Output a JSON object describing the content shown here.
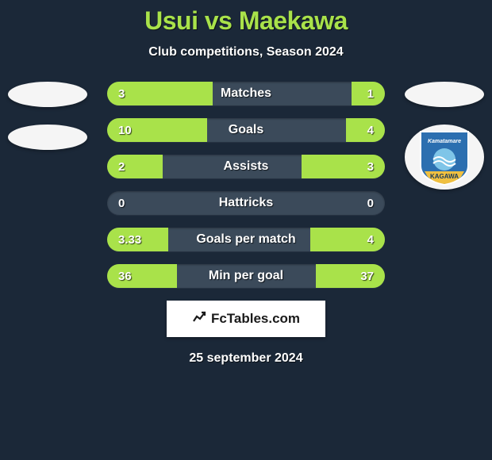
{
  "header": {
    "title": "Usui vs Maekawa",
    "subtitle": "Club competitions, Season 2024",
    "title_color": "#a9e24a"
  },
  "page": {
    "background_color": "#1b2838"
  },
  "badge": {
    "shield_label_top": "Kamatamare",
    "shield_label_bottom": "KAGAWA",
    "shield_blue": "#2c6fb0",
    "shield_yellow": "#f0c040",
    "shield_sky": "#7fc5e8"
  },
  "stats": {
    "track_base_color": "#3b4a5a",
    "left_bar_color": "#a9e24a",
    "right_bar_color": "#a9e24a",
    "null_color_left": "#a9e24a",
    "null_color_right": "#a9e24a",
    "rows": [
      {
        "label": "Matches",
        "left_val": "3",
        "right_val": "1",
        "left_pct": 38,
        "right_pct": 12
      },
      {
        "label": "Goals",
        "left_val": "10",
        "right_val": "4",
        "left_pct": 36,
        "right_pct": 14
      },
      {
        "label": "Assists",
        "left_val": "2",
        "right_val": "3",
        "left_pct": 20,
        "right_pct": 30
      },
      {
        "label": "Hattricks",
        "left_val": "0",
        "right_val": "0",
        "left_pct": 0,
        "right_pct": 0
      },
      {
        "label": "Goals per match",
        "left_val": "3.33",
        "right_val": "4",
        "left_pct": 22,
        "right_pct": 27
      },
      {
        "label": "Min per goal",
        "left_val": "36",
        "right_val": "37",
        "left_pct": 25,
        "right_pct": 25
      }
    ]
  },
  "footer": {
    "brand": "FcTables.com",
    "date": "25 september 2024"
  }
}
